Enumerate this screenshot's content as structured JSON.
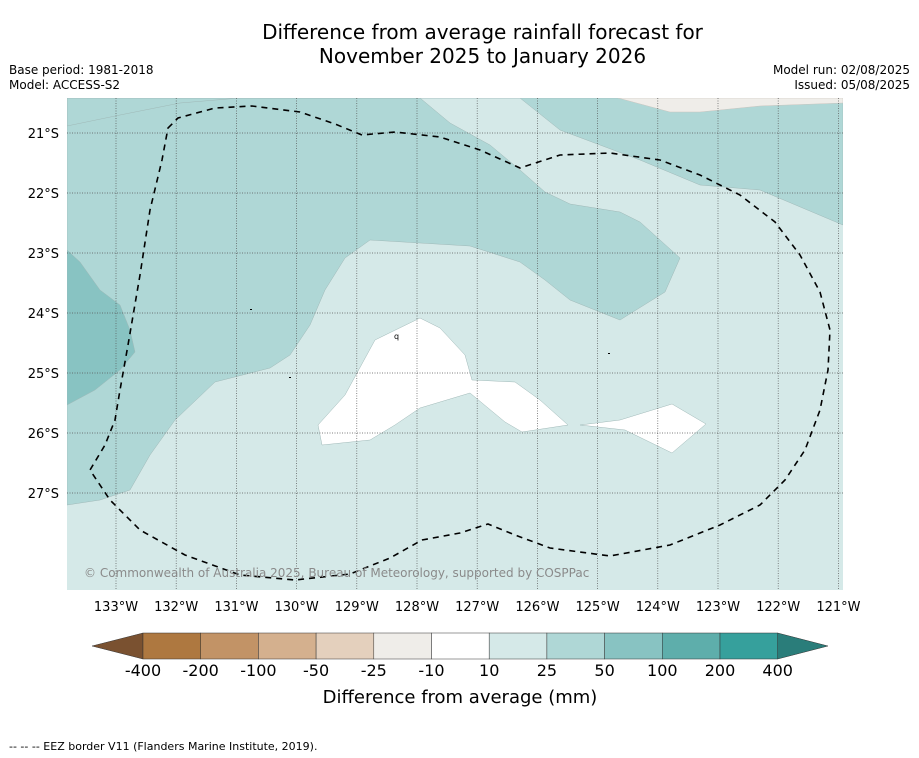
{
  "title_line1": "Difference from average rainfall forecast for",
  "title_line2": "November 2025 to January 2026",
  "base_period": "Base period: 1981-2018",
  "model": "Model: ACCESS-S2",
  "model_run": "Model run: 02/08/2025",
  "issued": "Issued: 05/08/2025",
  "copyright": "© Commonwealth of Australia 2025, Bureau of Meteorology, supported by COSPPac",
  "footer": "-- -- -- EEZ border V11 (Flanders Marine Institute, 2019).",
  "lat_labels": [
    "21°S",
    "22°S",
    "23°S",
    "24°S",
    "25°S",
    "26°S",
    "27°S"
  ],
  "lon_labels": [
    "133°W",
    "132°W",
    "131°W",
    "130°W",
    "129°W",
    "128°W",
    "127°W",
    "126°W",
    "125°W",
    "124°W",
    "123°W",
    "122°W",
    "121°W"
  ],
  "stray_label": "q",
  "colorbar": {
    "title": "Difference from average (mm)",
    "tick_labels": [
      "-400",
      "-200",
      "-100",
      "-50",
      "-25",
      "-10",
      "10",
      "25",
      "50",
      "100",
      "200",
      "400"
    ],
    "colors": [
      "#7a5130",
      "#ae7840",
      "#c29366",
      "#d4b08e",
      "#e4d0bd",
      "#efede9",
      "#ffffff",
      "#d5e9e8",
      "#afd7d6",
      "#88c3c2",
      "#5eaeab",
      "#36a09c",
      "#2a7d7a"
    ]
  },
  "map_colors": {
    "class_10_25": "#d5e9e8",
    "class_25_50": "#afd7d6",
    "class_50_100": "#88c3c2",
    "class_m25_m10": "#efede9",
    "class_m10_10": "#ffffff"
  }
}
